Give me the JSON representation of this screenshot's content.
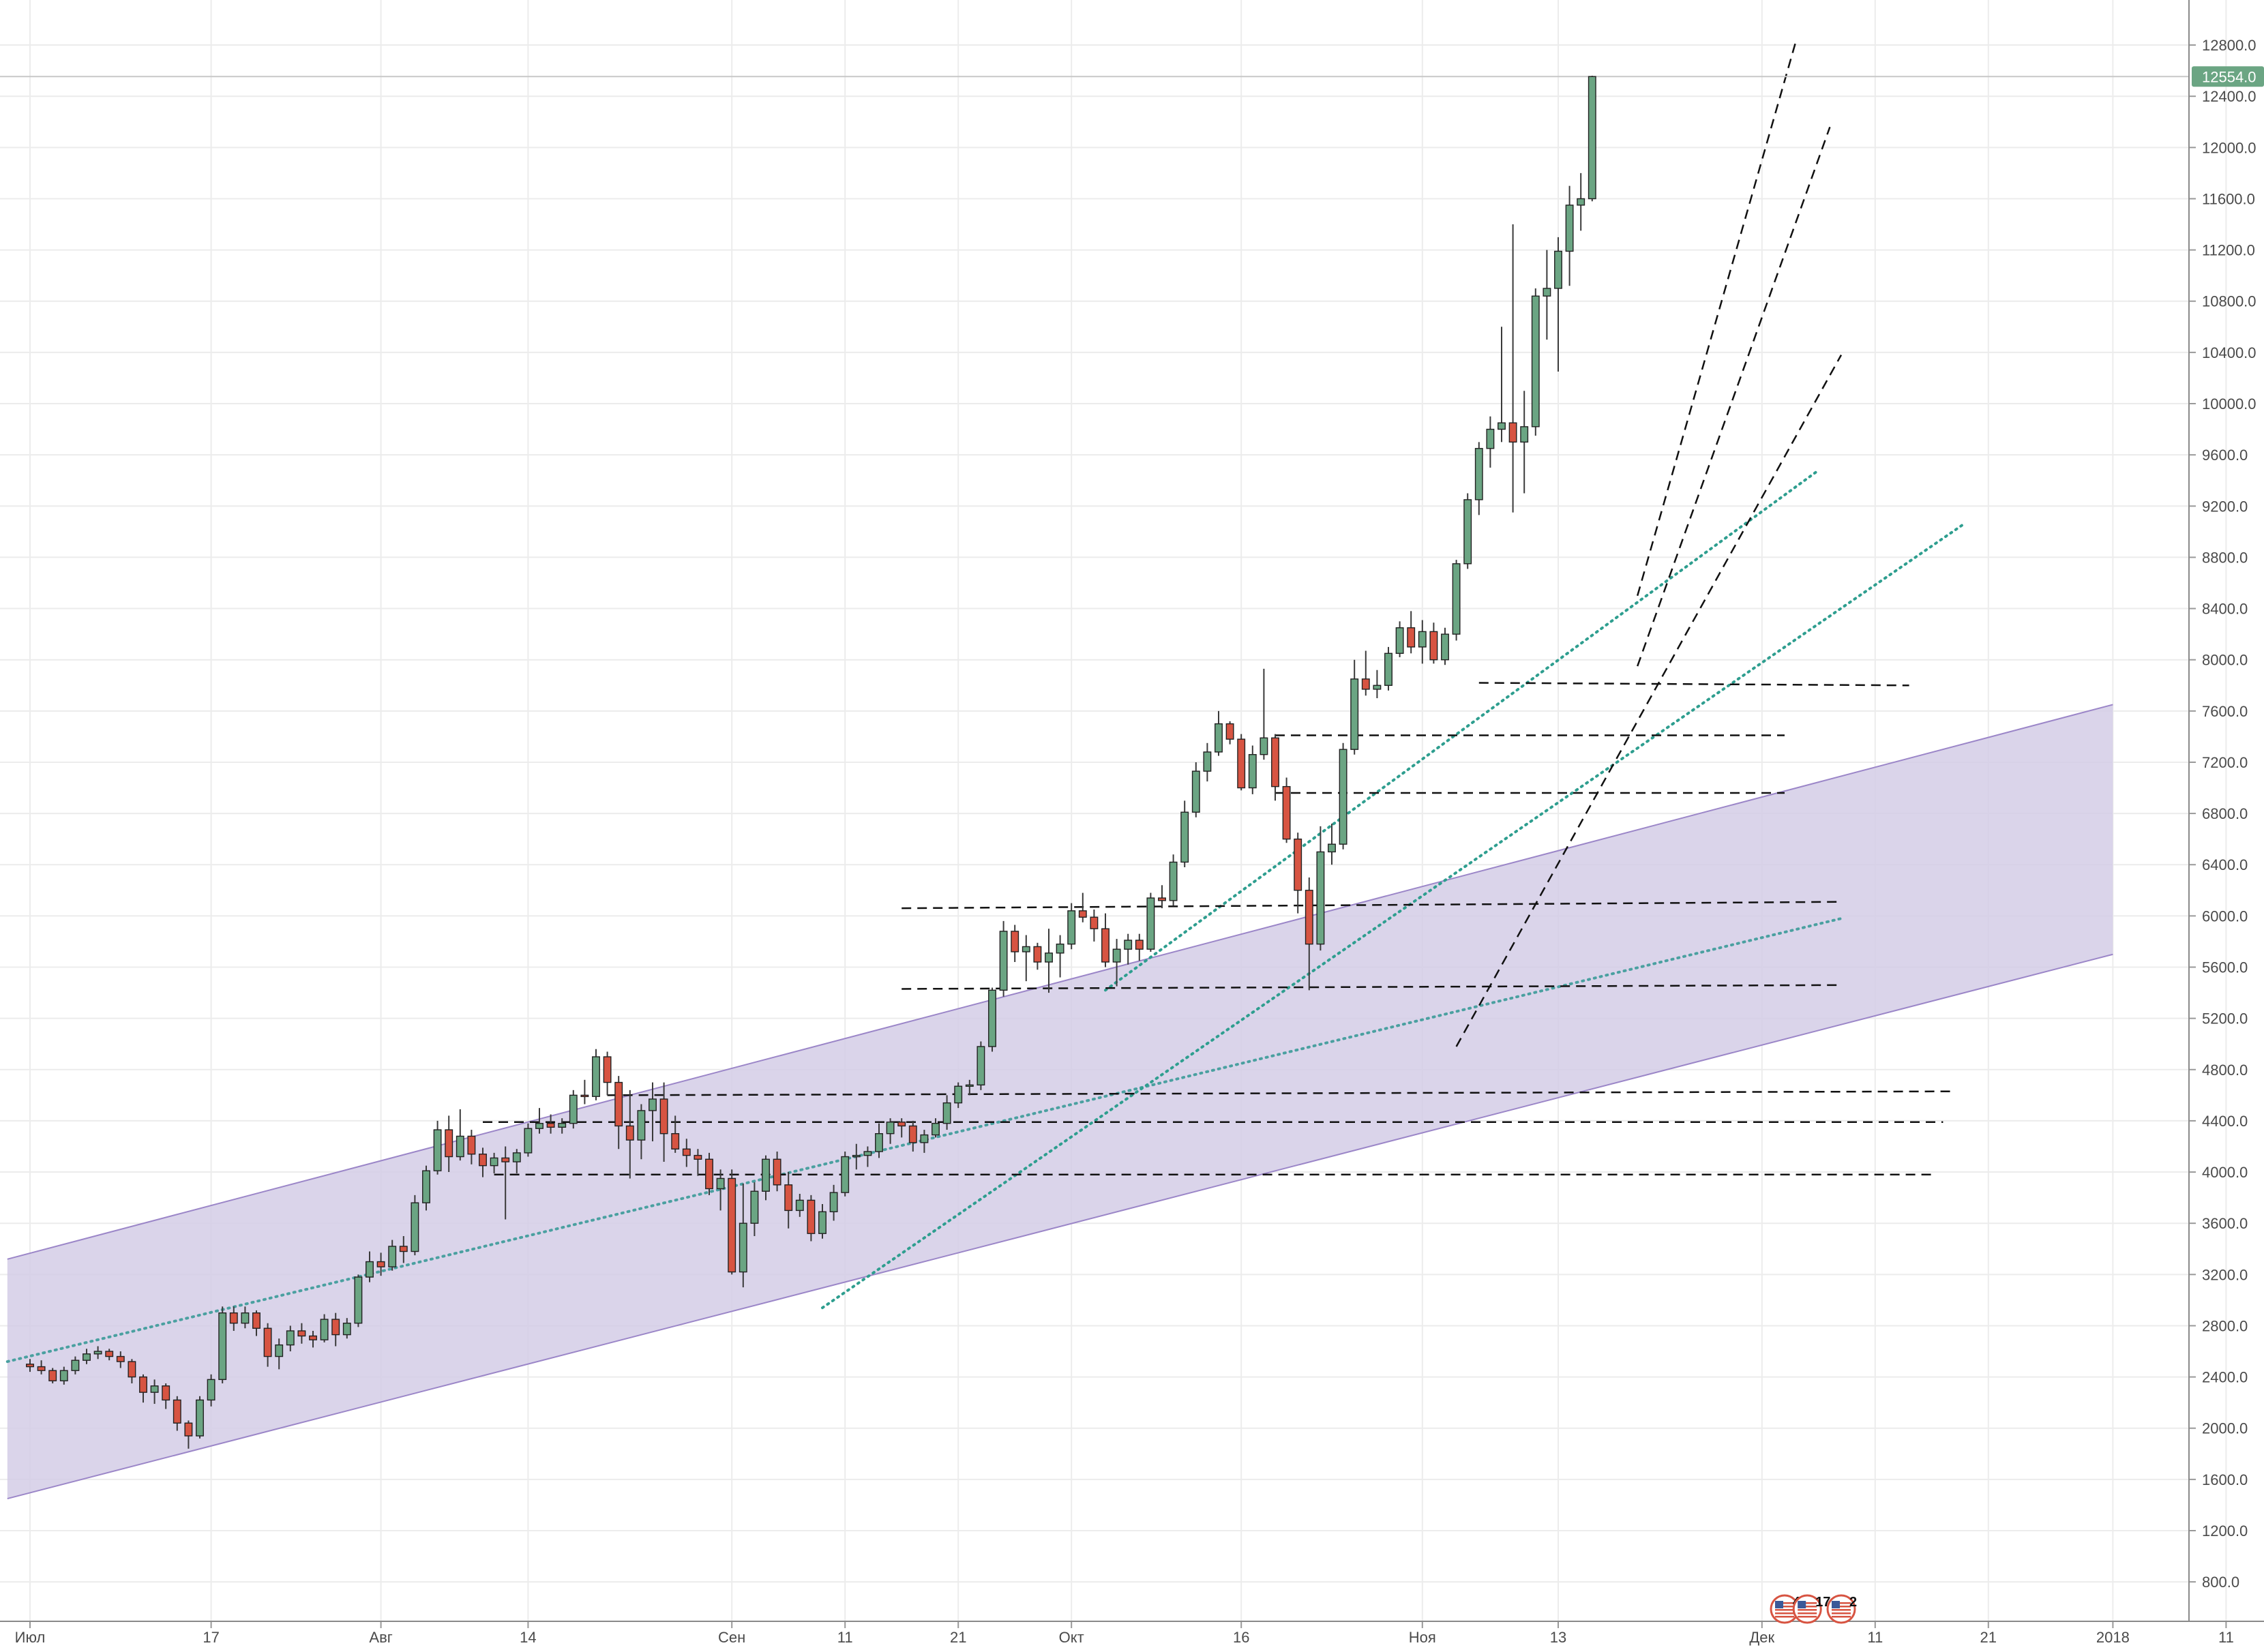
{
  "chart_data": {
    "type": "candlestick",
    "title": "",
    "xlabel": "",
    "ylabel": "",
    "ylim": [
      600,
      13000
    ],
    "grid": true,
    "y_axis_side": "right",
    "yticks": [
      800,
      1200,
      1600,
      2000,
      2400,
      2800,
      3200,
      3600,
      4000,
      4400,
      4800,
      5200,
      5600,
      6000,
      6400,
      6800,
      7200,
      7600,
      8000,
      8400,
      8800,
      9200,
      9600,
      10000,
      10400,
      10800,
      11200,
      11600,
      12000,
      12400,
      12800
    ],
    "ytick_labels": [
      "800.0",
      "1200.0",
      "1600.0",
      "2000.0",
      "2400.0",
      "2800.0",
      "3200.0",
      "3600.0",
      "4000.0",
      "4400.0",
      "4800.0",
      "5200.0",
      "5600.0",
      "6000.0",
      "6400.0",
      "6800.0",
      "7200.0",
      "7600.0",
      "8000.0",
      "8400.0",
      "8800.0",
      "9200.0",
      "9600.0",
      "10000.0",
      "10400.0",
      "10800.0",
      "11200.0",
      "11600.0",
      "12000.0",
      "12400.0",
      "12800.0"
    ],
    "x_tick_labels": [
      {
        "day": 0,
        "label": "Июл"
      },
      {
        "day": 16,
        "label": "17"
      },
      {
        "day": 31,
        "label": "Авг"
      },
      {
        "day": 44,
        "label": "14"
      },
      {
        "day": 62,
        "label": "Сен"
      },
      {
        "day": 72,
        "label": "11"
      },
      {
        "day": 82,
        "label": "21"
      },
      {
        "day": 92,
        "label": "Окт"
      },
      {
        "day": 107,
        "label": "16"
      },
      {
        "day": 123,
        "label": "Ноя"
      },
      {
        "day": 135,
        "label": "13"
      },
      {
        "day": 153,
        "label": "Дек"
      },
      {
        "day": 163,
        "label": "11"
      },
      {
        "day": 173,
        "label": "21"
      },
      {
        "day": 184,
        "label": "2018"
      },
      {
        "day": 194,
        "label": "11"
      }
    ],
    "last_price": 12554.0,
    "last_price_label": "12554.0",
    "colors": {
      "up": "#6ba583",
      "down": "#d75442",
      "wick": "#3a3a3a",
      "channel_fill": "#d4cde6",
      "channel_edge": "#9b86c8",
      "dotted_trend": "#2e9e8f",
      "dotted_trend_2": "#4aa0a0",
      "dashed": "#111111",
      "price_tag": "#6ba583",
      "grid": "#ececec",
      "axis_text": "#4a4a4a"
    },
    "candles": [
      [
        2500,
        2540,
        2440,
        2480
      ],
      [
        2480,
        2530,
        2420,
        2450
      ],
      [
        2450,
        2470,
        2350,
        2370
      ],
      [
        2370,
        2480,
        2340,
        2450
      ],
      [
        2450,
        2560,
        2420,
        2530
      ],
      [
        2530,
        2620,
        2500,
        2580
      ],
      [
        2580,
        2640,
        2540,
        2600
      ],
      [
        2600,
        2620,
        2530,
        2560
      ],
      [
        2560,
        2600,
        2470,
        2520
      ],
      [
        2520,
        2540,
        2350,
        2400
      ],
      [
        2400,
        2420,
        2200,
        2280
      ],
      [
        2280,
        2380,
        2190,
        2330
      ],
      [
        2330,
        2350,
        2150,
        2220
      ],
      [
        2220,
        2250,
        1980,
        2040
      ],
      [
        2040,
        2060,
        1840,
        1940
      ],
      [
        1940,
        2250,
        1920,
        2220
      ],
      [
        2220,
        2420,
        2170,
        2380
      ],
      [
        2380,
        2950,
        2350,
        2900
      ],
      [
        2900,
        2950,
        2760,
        2820
      ],
      [
        2820,
        2950,
        2780,
        2900
      ],
      [
        2900,
        2920,
        2720,
        2780
      ],
      [
        2780,
        2820,
        2480,
        2560
      ],
      [
        2560,
        2700,
        2460,
        2650
      ],
      [
        2650,
        2800,
        2600,
        2760
      ],
      [
        2760,
        2820,
        2660,
        2720
      ],
      [
        2720,
        2760,
        2630,
        2690
      ],
      [
        2690,
        2890,
        2670,
        2850
      ],
      [
        2850,
        2900,
        2640,
        2730
      ],
      [
        2730,
        2860,
        2700,
        2820
      ],
      [
        2820,
        3200,
        2790,
        3180
      ],
      [
        3180,
        3380,
        3140,
        3300
      ],
      [
        3300,
        3370,
        3190,
        3260
      ],
      [
        3260,
        3470,
        3230,
        3420
      ],
      [
        3420,
        3500,
        3290,
        3380
      ],
      [
        3380,
        3820,
        3350,
        3760
      ],
      [
        3760,
        4050,
        3700,
        4010
      ],
      [
        4010,
        4400,
        3980,
        4330
      ],
      [
        4330,
        4440,
        4000,
        4120
      ],
      [
        4120,
        4490,
        4090,
        4280
      ],
      [
        4280,
        4330,
        4060,
        4140
      ],
      [
        4140,
        4190,
        3960,
        4050
      ],
      [
        4050,
        4150,
        3990,
        4110
      ],
      [
        4110,
        4200,
        3630,
        4080
      ],
      [
        4080,
        4180,
        3990,
        4150
      ],
      [
        4150,
        4380,
        4120,
        4340
      ],
      [
        4340,
        4500,
        4300,
        4380
      ],
      [
        4380,
        4450,
        4300,
        4350
      ],
      [
        4350,
        4420,
        4300,
        4380
      ],
      [
        4380,
        4640,
        4340,
        4600
      ],
      [
        4600,
        4720,
        4530,
        4590
      ],
      [
        4590,
        4960,
        4560,
        4900
      ],
      [
        4900,
        4940,
        4600,
        4700
      ],
      [
        4700,
        4750,
        4180,
        4360
      ],
      [
        4360,
        4640,
        3950,
        4250
      ],
      [
        4250,
        4530,
        4100,
        4480
      ],
      [
        4480,
        4700,
        4240,
        4570
      ],
      [
        4570,
        4700,
        4080,
        4300
      ],
      [
        4300,
        4440,
        4150,
        4180
      ],
      [
        4180,
        4260,
        4040,
        4130
      ],
      [
        4130,
        4180,
        3970,
        4100
      ],
      [
        4100,
        4150,
        3820,
        3870
      ],
      [
        3870,
        4020,
        3700,
        3950
      ],
      [
        3950,
        4020,
        3200,
        3220
      ],
      [
        3220,
        3910,
        3100,
        3600
      ],
      [
        3600,
        3920,
        3500,
        3850
      ],
      [
        3850,
        4130,
        3780,
        4100
      ],
      [
        4100,
        4160,
        3850,
        3900
      ],
      [
        3900,
        4000,
        3560,
        3700
      ],
      [
        3700,
        3830,
        3650,
        3780
      ],
      [
        3780,
        3820,
        3460,
        3520
      ],
      [
        3520,
        3750,
        3480,
        3690
      ],
      [
        3690,
        3900,
        3620,
        3840
      ],
      [
        3840,
        4160,
        3810,
        4120
      ],
      [
        4120,
        4220,
        4020,
        4130
      ],
      [
        4130,
        4200,
        4040,
        4160
      ],
      [
        4160,
        4380,
        4110,
        4300
      ],
      [
        4300,
        4420,
        4220,
        4390
      ],
      [
        4390,
        4420,
        4270,
        4360
      ],
      [
        4360,
        4400,
        4160,
        4230
      ],
      [
        4230,
        4330,
        4150,
        4290
      ],
      [
        4290,
        4420,
        4270,
        4380
      ],
      [
        4380,
        4600,
        4330,
        4540
      ],
      [
        4540,
        4700,
        4500,
        4670
      ],
      [
        4670,
        4720,
        4600,
        4680
      ],
      [
        4680,
        5020,
        4640,
        4980
      ],
      [
        4980,
        5440,
        4940,
        5420
      ],
      [
        5420,
        5960,
        5370,
        5880
      ],
      [
        5880,
        5930,
        5640,
        5720
      ],
      [
        5720,
        5850,
        5490,
        5760
      ],
      [
        5760,
        5790,
        5580,
        5640
      ],
      [
        5640,
        5900,
        5400,
        5710
      ],
      [
        5710,
        5850,
        5520,
        5780
      ],
      [
        5780,
        6100,
        5740,
        6040
      ],
      [
        6040,
        6180,
        5950,
        5990
      ],
      [
        5990,
        6050,
        5800,
        5900
      ],
      [
        5900,
        6020,
        5600,
        5640
      ],
      [
        5640,
        5820,
        5450,
        5740
      ],
      [
        5740,
        5860,
        5620,
        5810
      ],
      [
        5810,
        5860,
        5650,
        5740
      ],
      [
        5740,
        6180,
        5720,
        6140
      ],
      [
        6140,
        6240,
        6060,
        6120
      ],
      [
        6120,
        6480,
        6080,
        6420
      ],
      [
        6420,
        6900,
        6380,
        6810
      ],
      [
        6810,
        7200,
        6770,
        7130
      ],
      [
        7130,
        7350,
        7050,
        7280
      ],
      [
        7280,
        7600,
        7250,
        7500
      ],
      [
        7500,
        7520,
        7340,
        7380
      ],
      [
        7380,
        7420,
        6980,
        7000
      ],
      [
        7000,
        7330,
        6950,
        7260
      ],
      [
        7260,
        7930,
        7220,
        7390
      ],
      [
        7390,
        7420,
        6900,
        7010
      ],
      [
        7010,
        7080,
        6570,
        6600
      ],
      [
        6600,
        6650,
        6020,
        6200
      ],
      [
        6200,
        6300,
        5420,
        5780
      ],
      [
        5780,
        6700,
        5730,
        6500
      ],
      [
        6500,
        6720,
        6400,
        6560
      ],
      [
        6560,
        7350,
        6520,
        7300
      ],
      [
        7300,
        8000,
        7260,
        7850
      ],
      [
        7850,
        8070,
        7720,
        7770
      ],
      [
        7770,
        7920,
        7700,
        7800
      ],
      [
        7800,
        8100,
        7760,
        8050
      ],
      [
        8050,
        8300,
        8020,
        8250
      ],
      [
        8250,
        8380,
        8050,
        8100
      ],
      [
        8100,
        8310,
        7970,
        8220
      ],
      [
        8220,
        8290,
        7970,
        8000
      ],
      [
        8000,
        8250,
        7960,
        8200
      ],
      [
        8200,
        8780,
        8150,
        8750
      ],
      [
        8750,
        9300,
        8710,
        9250
      ],
      [
        9250,
        9700,
        9130,
        9650
      ],
      [
        9650,
        9900,
        9500,
        9800
      ],
      [
        9800,
        10600,
        9700,
        9850
      ],
      [
        9850,
        11400,
        9150,
        9700
      ],
      [
        9700,
        10100,
        9300,
        9820
      ],
      [
        9820,
        10900,
        9750,
        10840
      ],
      [
        10840,
        11200,
        10500,
        10900
      ],
      [
        10900,
        11300,
        10250,
        11190
      ],
      [
        11190,
        11700,
        10920,
        11550
      ],
      [
        11550,
        11800,
        11350,
        11600
      ],
      [
        11600,
        12560,
        11580,
        12554
      ]
    ],
    "shaded_channel": {
      "upper": [
        [
          -2,
          3320
        ],
        [
          184,
          7650
        ]
      ],
      "lower": [
        [
          -2,
          1450
        ],
        [
          184,
          5700
        ]
      ]
    },
    "trend_lines": [
      {
        "style": "dotted",
        "color": "dotted_trend_2",
        "from": [
          -2,
          2520
        ],
        "to": [
          160,
          5980
        ]
      },
      {
        "style": "dotted",
        "color": "dotted_trend",
        "from": [
          70,
          2940
        ],
        "to": [
          171,
          9070
        ]
      },
      {
        "style": "dotted",
        "color": "dotted_trend",
        "from": [
          95,
          5420
        ],
        "to": [
          158,
          9480
        ]
      }
    ],
    "dashed_lines": [
      {
        "from": [
          41,
          3980
        ],
        "to": [
          168,
          3980
        ]
      },
      {
        "from": [
          40,
          4390
        ],
        "to": [
          169,
          4390
        ]
      },
      {
        "from": [
          51,
          4600
        ],
        "to": [
          170,
          4630
        ]
      },
      {
        "from": [
          77,
          5430
        ],
        "to": [
          160,
          5460
        ]
      },
      {
        "from": [
          77,
          6060
        ],
        "to": [
          160,
          6110
        ]
      },
      {
        "from": [
          110,
          6960
        ],
        "to": [
          155,
          6960
        ]
      },
      {
        "from": [
          110,
          7410
        ],
        "to": [
          155,
          7410
        ]
      },
      {
        "from": [
          128,
          7820
        ],
        "to": [
          166,
          7800
        ]
      },
      {
        "from": [
          126,
          4980
        ],
        "to": [
          160,
          10380
        ]
      },
      {
        "from": [
          142,
          8500
        ],
        "to": [
          156,
          12830
        ]
      },
      {
        "from": [
          142,
          7950
        ],
        "to": [
          159,
          12160
        ]
      }
    ],
    "event_markers": [
      {
        "day": 155,
        "label": "4"
      },
      {
        "day": 157,
        "label": "17"
      },
      {
        "day": 160,
        "label": "2"
      }
    ]
  }
}
